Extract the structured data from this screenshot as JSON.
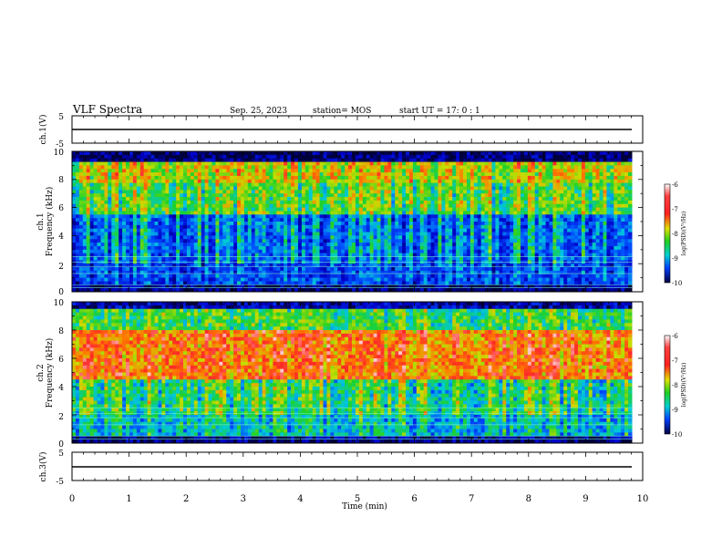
{
  "header": {
    "title": "VLF Spectra",
    "date": "Sep. 25, 2023",
    "station": "station= MOS",
    "start": "start UT =  17: 0 : 1"
  },
  "chart_data": [
    {
      "type": "line",
      "panel": "ch1-waveform",
      "ylabel": "ch.1(V)",
      "ylim": [
        -5,
        5
      ],
      "yticks": [
        "5",
        "-5"
      ],
      "series": [
        {
          "values": [
            -1,
            -1
          ]
        }
      ]
    },
    {
      "type": "heatmap",
      "panel": "ch1-spectrogram",
      "ylabel_line1": "ch.1",
      "ylabel_line2": "Frequency (kHz)",
      "ylim": [
        0,
        10
      ],
      "yticks": [
        "0",
        "2",
        "4",
        "6",
        "8",
        "10"
      ],
      "colorbar": {
        "label": "log(PSD)(V²/Hz)",
        "ticks": [
          "-6",
          "-7",
          "-8",
          "-9",
          "-10"
        ],
        "range": [
          -10,
          -6
        ]
      }
    },
    {
      "type": "heatmap",
      "panel": "ch2-spectrogram",
      "ylabel_line1": "ch.2",
      "ylabel_line2": "Frequency (kHz)",
      "ylim": [
        0,
        10
      ],
      "yticks": [
        "0",
        "2",
        "4",
        "6",
        "8",
        "10"
      ],
      "colorbar": {
        "label": "log(PSD)(V²/Hz)",
        "ticks": [
          "-6",
          "-7",
          "-8",
          "-9",
          "-10"
        ],
        "range": [
          -10,
          -6
        ]
      }
    },
    {
      "type": "line",
      "panel": "ch3-waveform",
      "ylabel": "ch.3(V)",
      "ylim": [
        -5,
        5
      ],
      "yticks": [
        "5",
        "-5"
      ],
      "series": [
        {
          "values": [
            -1,
            -1
          ]
        }
      ]
    }
  ],
  "xaxis": {
    "label": "Time (min)",
    "range": [
      0,
      10
    ],
    "ticks": [
      "0",
      "1",
      "2",
      "3",
      "4",
      "5",
      "6",
      "7",
      "8",
      "9",
      "10"
    ]
  }
}
